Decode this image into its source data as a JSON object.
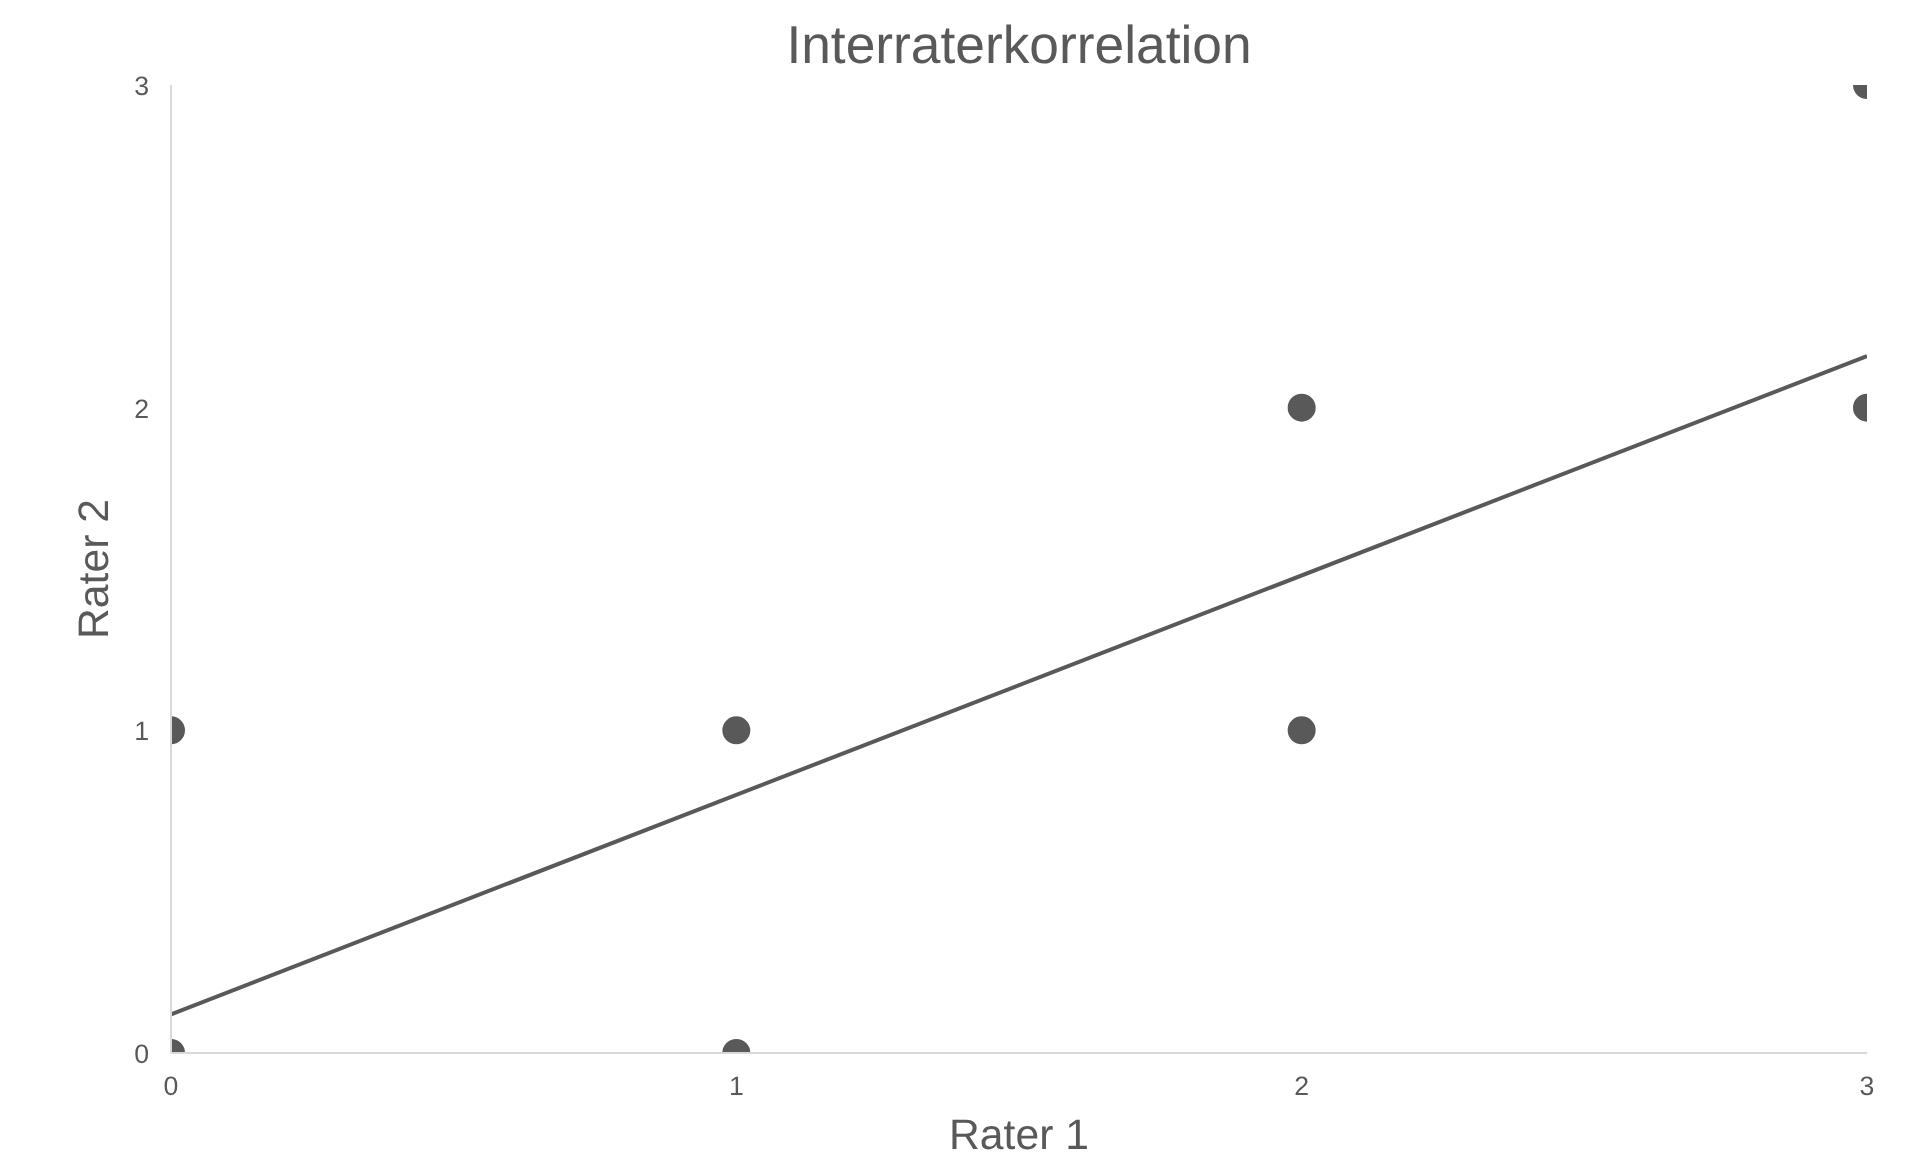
{
  "chart_data": {
    "type": "scatter",
    "title": "Interraterkorrelation",
    "xlabel": "Rater 1",
    "ylabel": "Rater 2",
    "xlim": [
      0,
      3
    ],
    "ylim": [
      0,
      3
    ],
    "xticks": [
      0,
      1,
      2,
      3
    ],
    "yticks": [
      0,
      1,
      2,
      3
    ],
    "marker": "circle",
    "series": [
      {
        "color": "#595959",
        "x": [
          0,
          0,
          1,
          1,
          2,
          2,
          3,
          3
        ],
        "values": [
          0,
          1,
          0,
          1,
          1,
          2,
          2,
          3
        ]
      },
      {
        "type": "line",
        "color": "#595959",
        "x": [
          0,
          3
        ],
        "values": [
          0.12,
          2.16
        ],
        "line_style": "solid",
        "marker": "none"
      }
    ]
  }
}
